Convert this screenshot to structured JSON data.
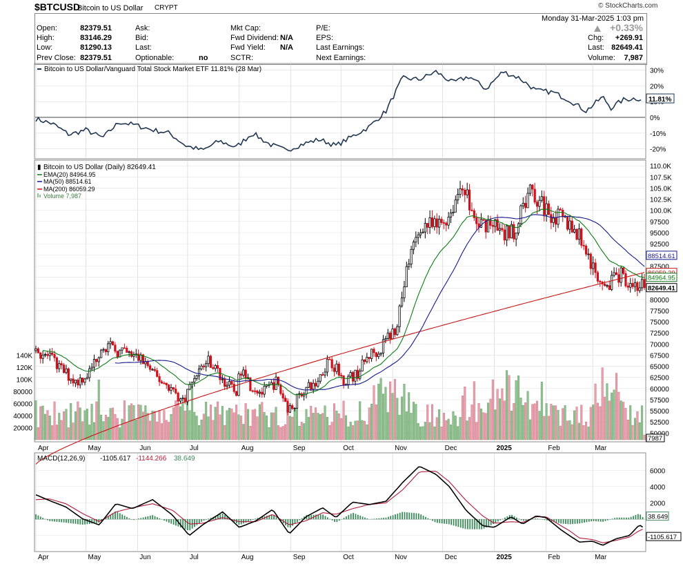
{
  "header": {
    "symbol": "$BTCUSD",
    "name": "Bitcoin to US Dollar",
    "exchange": "CRYPT",
    "brand": "© StockCharts.com",
    "datetime": "Monday  31-Mar-2025  1:03 pm",
    "quote": {
      "open_label": "Open:",
      "open": "82379.51",
      "high_label": "High:",
      "high": "83146.29",
      "low_label": "Low:",
      "low": "81290.13",
      "prev_label": "Prev Close:",
      "prev": "82379.51",
      "ask_label": "Ask:",
      "bid_label": "Bid:",
      "last_label": "Last:",
      "optionable_label": "Optionable:",
      "optionable": "no",
      "mktcap_label": "Mkt Cap:",
      "fwddiv_label": "Fwd Dividend:",
      "fwddiv": "N/A",
      "fwdyield_label": "Fwd Yield:",
      "fwdyield": "N/A",
      "sctr_label": "SCTR:",
      "pe_label": "P/E:",
      "eps_label": "EPS:",
      "lastearn_label": "Last Earnings:",
      "nextearn_label": "Next Earnings:",
      "change_pct": "+0.33%",
      "chg_label": "Chg:",
      "chg": "+269.91",
      "lastpx_label": "Last:",
      "lastpx": "82649.41",
      "volume_label": "Volume:",
      "volume": "7,987"
    },
    "colors": {
      "up": "#9a9a9a",
      "accent": "#1f3550"
    }
  },
  "chart_data": [
    {
      "type": "line",
      "legend": "Bitcoin to US Dollar/Vanguard Total Stock Market ETF 11.81% (28 Mar)",
      "ylabel_unit": "%",
      "ytick_labels": [
        "30%",
        "20%",
        "10%",
        "0%",
        "-10%",
        "-20%"
      ],
      "ytick_values": [
        30,
        20,
        10,
        0,
        -10,
        -20
      ],
      "ylim": [
        -25,
        32
      ],
      "last_label": "11.81%",
      "color": "#1f3550",
      "x_range": [
        0,
        365
      ],
      "x": [
        0,
        10,
        20,
        30,
        40,
        50,
        60,
        70,
        80,
        90,
        100,
        110,
        120,
        130,
        140,
        150,
        160,
        170,
        180,
        190,
        200,
        210,
        220,
        230,
        240,
        250,
        260,
        270,
        280,
        290,
        300,
        310,
        320,
        330,
        340,
        345,
        352,
        358,
        363
      ],
      "y": [
        -1,
        -4,
        -11,
        -8,
        -13,
        -3,
        -5,
        -8,
        -10,
        -18,
        -21,
        -15,
        -19,
        -10,
        -17,
        -21,
        -17,
        -14,
        -18,
        -12,
        -6,
        4,
        25,
        24,
        29,
        22,
        26,
        18,
        29,
        25,
        17,
        16,
        11,
        4,
        13,
        6,
        11,
        12,
        11.81
      ]
    },
    {
      "type": "candlestick",
      "legend": [
        "Bitcoin to US Dollar (Daily) 82649.41",
        "EMA(20) 84964.95",
        "MA(50) 88514.61",
        "MA(200) 86059.29",
        "Volume 7,987"
      ],
      "ytick_labels": [
        "110.0K",
        "107.5K",
        "105.0K",
        "102.5K",
        "100.0K",
        "97500",
        "95000",
        "92500",
        "90000",
        "87500",
        "85000",
        "82500",
        "80000",
        "77500",
        "75000",
        "72500",
        "70000",
        "67500",
        "65000",
        "62500",
        "60000",
        "57500",
        "55000",
        "52500",
        "50000"
      ],
      "ytick_values": [
        110000,
        107500,
        105000,
        102500,
        100000,
        97500,
        95000,
        92500,
        90000,
        87500,
        85000,
        82500,
        80000,
        77500,
        75000,
        72500,
        70000,
        67500,
        65000,
        62500,
        60000,
        57500,
        55000,
        52500,
        50000
      ],
      "ylim": [
        48500,
        110500
      ],
      "volume_tick_labels": [
        "140K",
        "120K",
        "100K",
        "80000",
        "60000",
        "40000",
        "20000"
      ],
      "volume_tick_values": [
        140000,
        120000,
        100000,
        80000,
        60000,
        40000,
        20000
      ],
      "x_tick_labels": [
        "Apr",
        "May",
        "Jun",
        "Jul",
        "Aug",
        "Sep",
        "Oct",
        "Nov",
        "Dec",
        "2025",
        "Feb",
        "Mar"
      ],
      "x_tick_positions": [
        0,
        30,
        61,
        91,
        122,
        153,
        183,
        214,
        244,
        275,
        306,
        334
      ],
      "x_range": [
        0,
        365
      ],
      "price_anchors_x": [
        0,
        8,
        16,
        24,
        32,
        40,
        48,
        56,
        64,
        72,
        80,
        88,
        96,
        104,
        112,
        120,
        124,
        128,
        136,
        144,
        152,
        160,
        168,
        176,
        184,
        192,
        200,
        208,
        216,
        224,
        232,
        240,
        248,
        256,
        264,
        272,
        280,
        288,
        296,
        304,
        312,
        320,
        328,
        332,
        336,
        344,
        352,
        358,
        365
      ],
      "price_anchors_y": [
        68500,
        67000,
        64000,
        61500,
        63500,
        70000,
        68500,
        67500,
        66500,
        62500,
        60500,
        57000,
        63500,
        66500,
        62000,
        59000,
        66000,
        61000,
        59000,
        61500,
        55000,
        59500,
        61000,
        67000,
        62000,
        63000,
        67500,
        69500,
        74000,
        89000,
        97000,
        96000,
        99000,
        106500,
        96500,
        97500,
        94000,
        96000,
        104000,
        101000,
        98500,
        97000,
        93000,
        89000,
        85000,
        84000,
        85500,
        83500,
        82649
      ],
      "ema20": 84964.95,
      "ma50": 88514.61,
      "ma200": 86059.29,
      "ma200_start": 43000,
      "last_price": 82649.41,
      "last_volume": 7987,
      "colors": {
        "up": "#000000",
        "down": "#d0101a",
        "ema": "#0b7a12",
        "ma50": "#13178f",
        "ma200": "#c81414",
        "vol_up": "#8fc08f",
        "vol_down": "#e8a0ad"
      }
    },
    {
      "type": "line",
      "legend_name": "MACD(12,26,9)",
      "legend_values": [
        "-1105.617",
        "-1144.266",
        "38.649"
      ],
      "ytick_labels": [
        "6000",
        "4000",
        "2000",
        "-2000"
      ],
      "ytick_values": [
        6000,
        4000,
        2000,
        -2000
      ],
      "ylim": [
        -3800,
        7800
      ],
      "x_range": [
        0,
        365
      ],
      "macd_x": [
        0,
        8,
        18,
        28,
        38,
        48,
        58,
        70,
        82,
        92,
        100,
        112,
        122,
        132,
        142,
        152,
        162,
        172,
        180,
        190,
        200,
        210,
        220,
        230,
        240,
        248,
        258,
        268,
        275,
        285,
        292,
        300,
        306,
        315,
        320,
        326,
        334,
        340,
        348,
        356,
        362,
        365
      ],
      "macd_y": [
        3000,
        2300,
        1500,
        50,
        -700,
        1900,
        1300,
        2400,
        500,
        -2000,
        -700,
        900,
        -1000,
        -200,
        1200,
        -1800,
        300,
        1400,
        200,
        2100,
        1800,
        2200,
        4500,
        6500,
        5500,
        4000,
        1100,
        -800,
        -1000,
        300,
        -600,
        400,
        200,
        -1300,
        -2000,
        -2800,
        -2700,
        -3200,
        -2400,
        -2000,
        -700,
        -1105.617
      ],
      "signal_y": [
        2400,
        2500,
        1900,
        700,
        -300,
        900,
        1400,
        1900,
        1100,
        -600,
        -500,
        200,
        -300,
        -300,
        600,
        -700,
        -200,
        800,
        600,
        1300,
        1800,
        2000,
        3600,
        5800,
        5900,
        4600,
        2300,
        400,
        -500,
        -300,
        -400,
        300,
        300,
        -800,
        -1400,
        -2300,
        -2500,
        -2900,
        -2600,
        -2200,
        -1400,
        -1144.266
      ],
      "histogram_last": 38.649,
      "colors": {
        "macd": "#000000",
        "signal": "#b01a3a",
        "hist": "#3a8a5a"
      },
      "last_labels": [
        "38.649",
        "-1105.617"
      ]
    }
  ]
}
